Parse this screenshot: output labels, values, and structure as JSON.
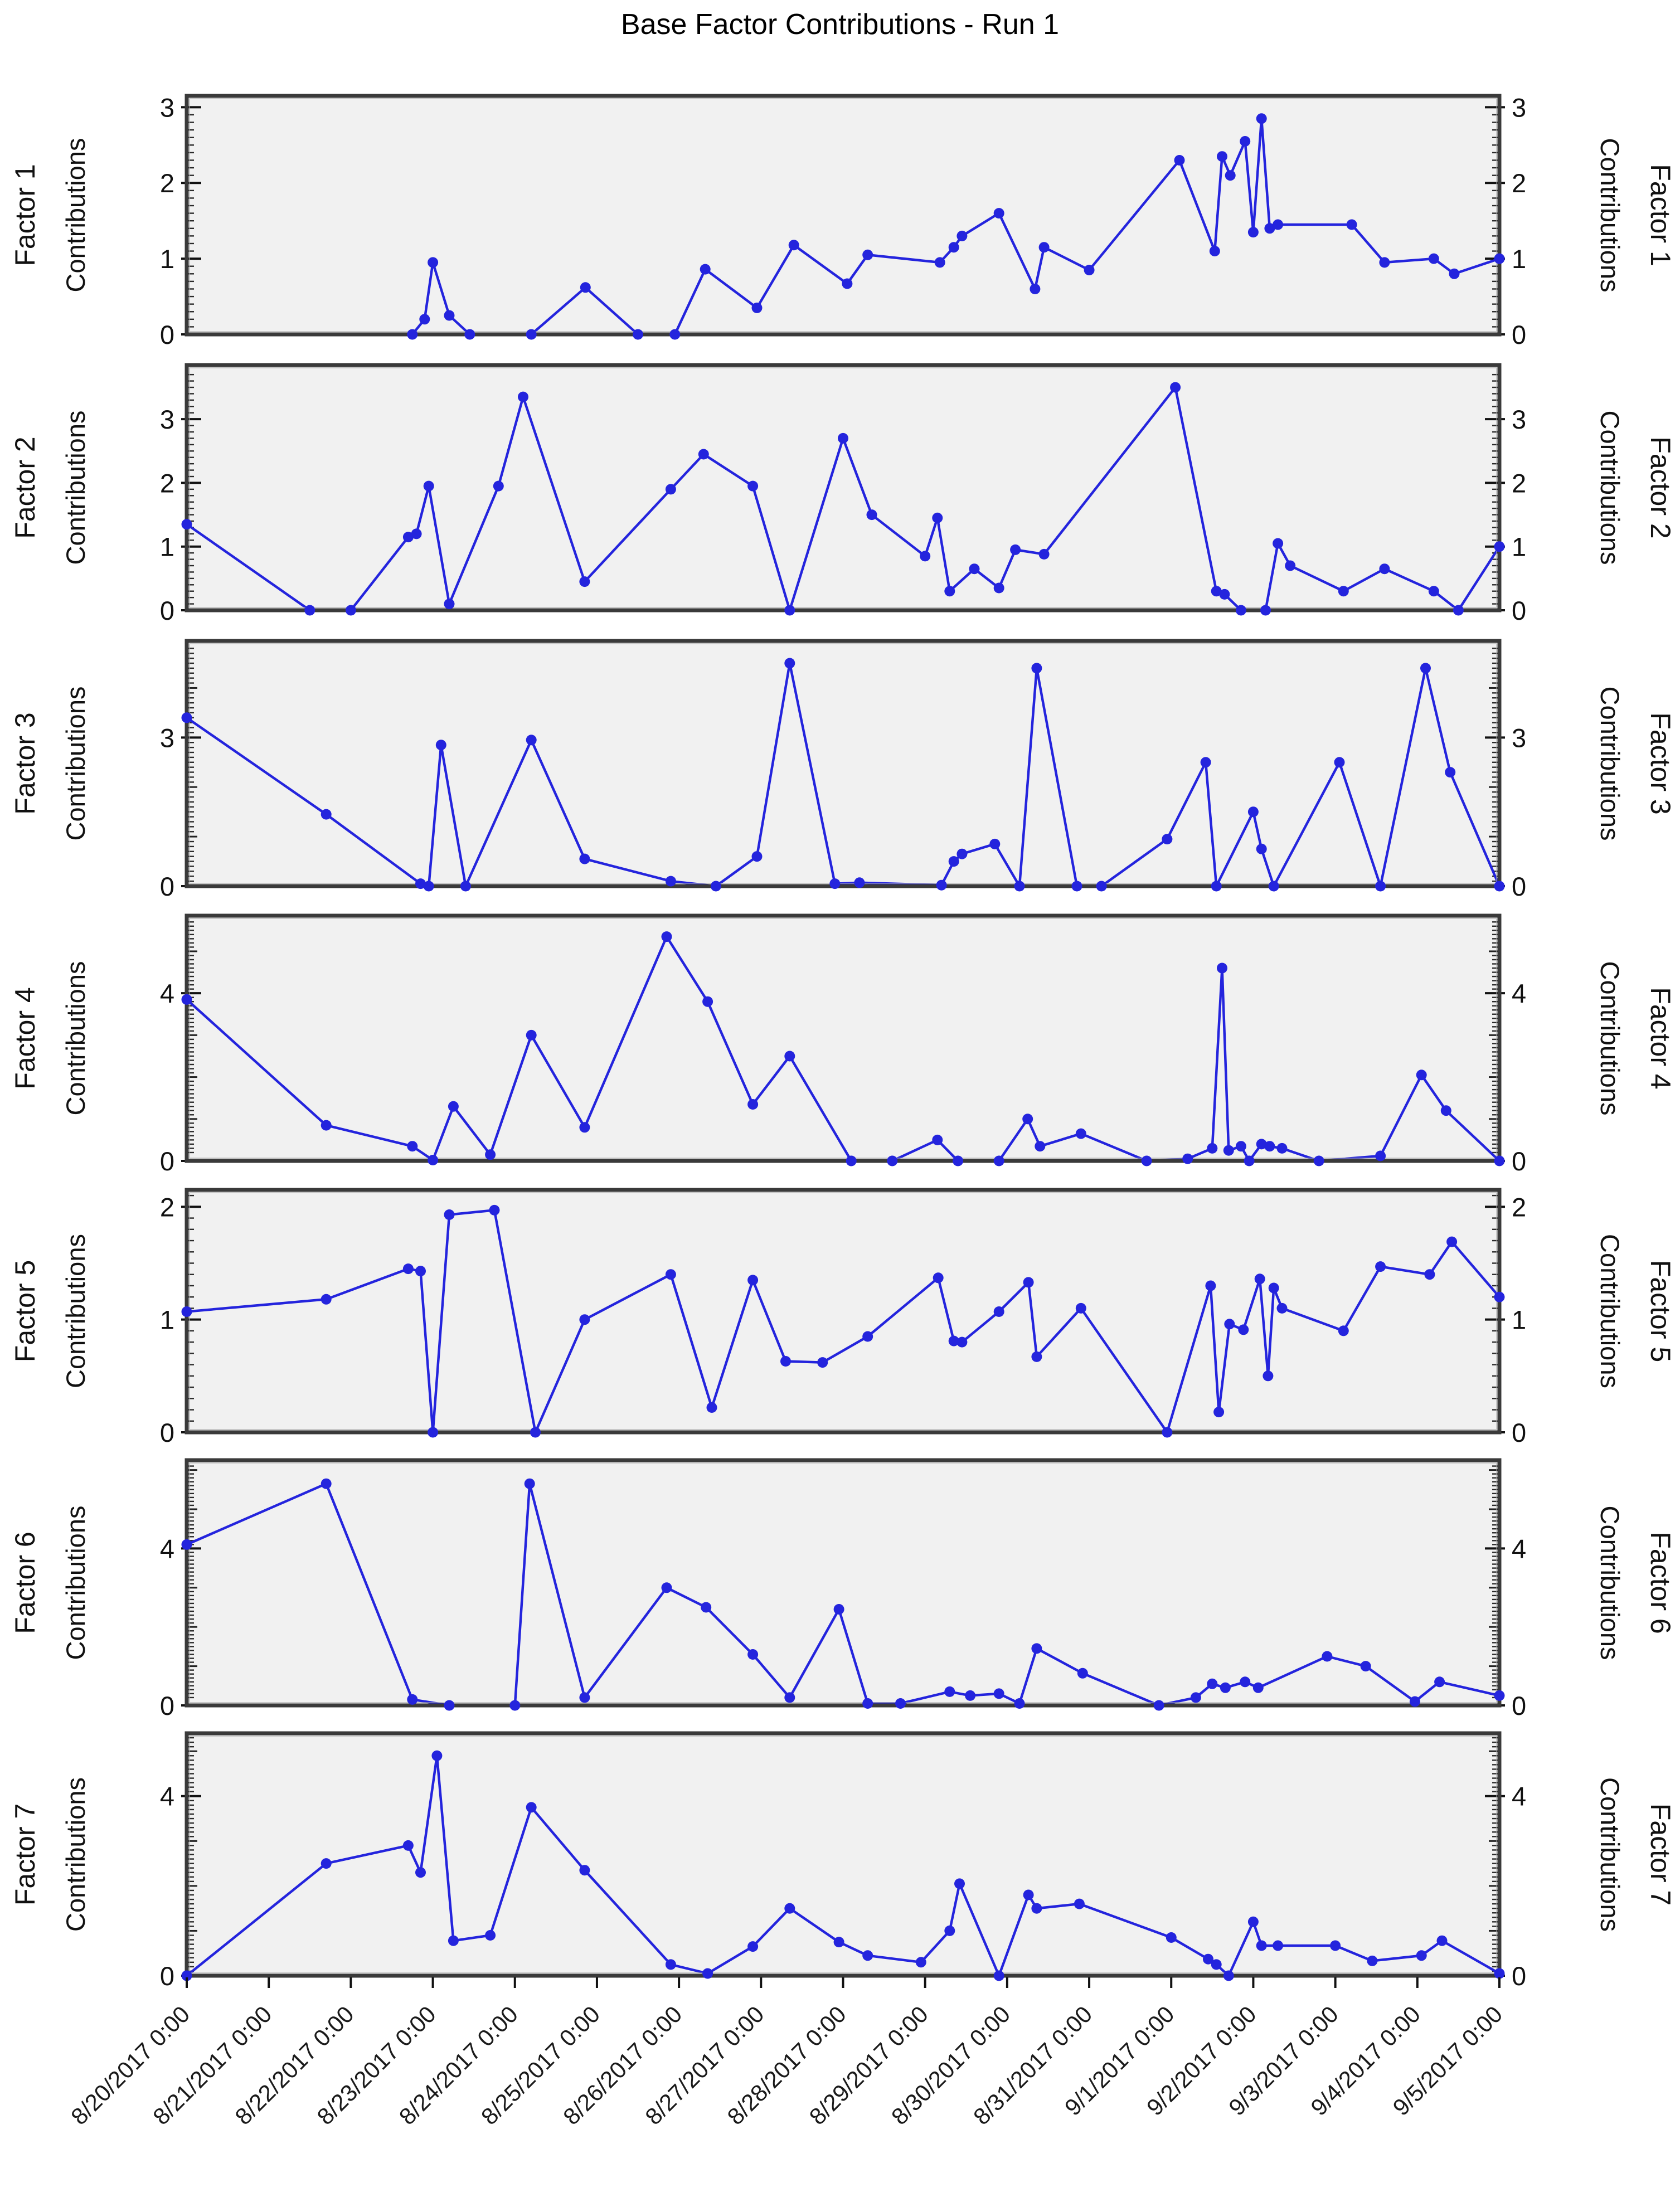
{
  "title": "Base Factor Contributions - Run 1",
  "chart_data": {
    "type": "line",
    "subplots_share_x": true,
    "y_axis_label": "Contributions",
    "line_color": "#2424dd",
    "marker_color": "#2424dd",
    "plot_bg": "#f1f1f1",
    "border_color": "#3a3a3a",
    "text_color": "#111111",
    "x_axis": {
      "start_day": 0,
      "end_day": 16,
      "tick_labels": [
        "8/20/2017 0:00",
        "8/21/2017 0:00",
        "8/22/2017 0:00",
        "8/23/2017 0:00",
        "8/24/2017 0:00",
        "8/25/2017 0:00",
        "8/26/2017 0:00",
        "8/27/2017 0:00",
        "8/28/2017 0:00",
        "8/29/2017 0:00",
        "8/30/2017 0:00",
        "8/31/2017 0:00",
        "9/1/2017 0:00",
        "9/2/2017 0:00",
        "9/3/2017 0:00",
        "9/4/2017 0:00",
        "9/5/2017 0:00"
      ],
      "label_rotation_deg": -45
    },
    "panels": [
      {
        "name": "Factor 1",
        "ylim": [
          0,
          3.15
        ],
        "yticks_labeled": [
          0,
          1,
          2,
          3
        ],
        "yticks_unlabeled": [],
        "points": [
          [
            2.75,
            0
          ],
          [
            2.9,
            0.2
          ],
          [
            3.0,
            0.95
          ],
          [
            3.2,
            0.25
          ],
          [
            3.45,
            0
          ],
          [
            4.2,
            0
          ],
          [
            4.86,
            0.62
          ],
          [
            5.5,
            0
          ],
          [
            5.95,
            0
          ],
          [
            6.32,
            0.86
          ],
          [
            6.95,
            0.35
          ],
          [
            7.4,
            1.18
          ],
          [
            8.05,
            0.67
          ],
          [
            8.3,
            1.05
          ],
          [
            9.18,
            0.95
          ],
          [
            9.35,
            1.15
          ],
          [
            9.45,
            1.3
          ],
          [
            9.9,
            1.6
          ],
          [
            10.34,
            0.6
          ],
          [
            10.45,
            1.15
          ],
          [
            11.0,
            0.85
          ],
          [
            12.1,
            2.3
          ],
          [
            12.53,
            1.1
          ],
          [
            12.62,
            2.35
          ],
          [
            12.72,
            2.1
          ],
          [
            12.9,
            2.55
          ],
          [
            13.0,
            1.35
          ],
          [
            13.1,
            2.85
          ],
          [
            13.2,
            1.4
          ],
          [
            13.3,
            1.45
          ],
          [
            14.2,
            1.45
          ],
          [
            14.6,
            0.95
          ],
          [
            15.2,
            1.0
          ],
          [
            15.45,
            0.8
          ],
          [
            16,
            1.0
          ]
        ]
      },
      {
        "name": "Factor 2",
        "ylim": [
          0,
          3.85
        ],
        "yticks_labeled": [
          0,
          1,
          2,
          3
        ],
        "yticks_unlabeled": [],
        "points": [
          [
            0,
            1.35
          ],
          [
            1.5,
            0
          ],
          [
            2.0,
            0
          ],
          [
            2.7,
            1.15
          ],
          [
            2.8,
            1.2
          ],
          [
            2.95,
            1.95
          ],
          [
            3.2,
            0.1
          ],
          [
            3.8,
            1.95
          ],
          [
            4.1,
            3.35
          ],
          [
            4.85,
            0.45
          ],
          [
            5.9,
            1.9
          ],
          [
            6.3,
            2.45
          ],
          [
            6.9,
            1.95
          ],
          [
            7.35,
            0
          ],
          [
            8.0,
            2.7
          ],
          [
            8.35,
            1.5
          ],
          [
            9.0,
            0.85
          ],
          [
            9.15,
            1.45
          ],
          [
            9.3,
            0.3
          ],
          [
            9.6,
            0.65
          ],
          [
            9.9,
            0.35
          ],
          [
            10.1,
            0.95
          ],
          [
            10.45,
            0.88
          ],
          [
            12.05,
            3.5
          ],
          [
            12.55,
            0.3
          ],
          [
            12.65,
            0.25
          ],
          [
            12.85,
            0
          ],
          [
            13.15,
            0
          ],
          [
            13.3,
            1.05
          ],
          [
            13.45,
            0.7
          ],
          [
            14.1,
            0.3
          ],
          [
            14.6,
            0.65
          ],
          [
            15.2,
            0.3
          ],
          [
            15.5,
            0
          ],
          [
            16,
            1.0
          ]
        ]
      },
      {
        "name": "Factor 3",
        "ylim": [
          0,
          4.95
        ],
        "yticks_labeled": [
          0,
          3
        ],
        "yticks_unlabeled": [
          1,
          2,
          4
        ],
        "points": [
          [
            0,
            3.4
          ],
          [
            1.7,
            1.45
          ],
          [
            2.85,
            0.05
          ],
          [
            2.95,
            0
          ],
          [
            3.1,
            2.85
          ],
          [
            3.4,
            0
          ],
          [
            4.2,
            2.95
          ],
          [
            4.85,
            0.55
          ],
          [
            5.9,
            0.1
          ],
          [
            6.45,
            0
          ],
          [
            6.95,
            0.6
          ],
          [
            7.35,
            4.5
          ],
          [
            7.9,
            0.05
          ],
          [
            8.2,
            0.07
          ],
          [
            9.2,
            0.02
          ],
          [
            9.35,
            0.5
          ],
          [
            9.45,
            0.65
          ],
          [
            9.85,
            0.85
          ],
          [
            10.15,
            0
          ],
          [
            10.36,
            4.4
          ],
          [
            10.85,
            0
          ],
          [
            11.15,
            0
          ],
          [
            11.95,
            0.95
          ],
          [
            12.42,
            2.5
          ],
          [
            12.55,
            0
          ],
          [
            13.0,
            1.5
          ],
          [
            13.1,
            0.75
          ],
          [
            13.25,
            0
          ],
          [
            14.05,
            2.5
          ],
          [
            14.55,
            0
          ],
          [
            15.1,
            4.4
          ],
          [
            15.4,
            2.3
          ],
          [
            16,
            0
          ]
        ]
      },
      {
        "name": "Factor 4",
        "ylim": [
          0,
          5.85
        ],
        "yticks_labeled": [
          0,
          4
        ],
        "yticks_unlabeled": [
          1,
          2,
          3,
          5
        ],
        "points": [
          [
            0,
            3.85
          ],
          [
            1.7,
            0.85
          ],
          [
            2.75,
            0.35
          ],
          [
            3.0,
            0.02
          ],
          [
            3.25,
            1.3
          ],
          [
            3.7,
            0.15
          ],
          [
            4.2,
            3.0
          ],
          [
            4.85,
            0.8
          ],
          [
            5.85,
            5.35
          ],
          [
            6.35,
            3.8
          ],
          [
            6.9,
            1.35
          ],
          [
            7.35,
            2.5
          ],
          [
            8.1,
            0
          ],
          [
            8.6,
            0
          ],
          [
            9.15,
            0.5
          ],
          [
            9.4,
            0
          ],
          [
            9.9,
            0
          ],
          [
            10.25,
            1.0
          ],
          [
            10.4,
            0.35
          ],
          [
            10.9,
            0.65
          ],
          [
            11.7,
            0
          ],
          [
            12.2,
            0.05
          ],
          [
            12.5,
            0.3
          ],
          [
            12.62,
            4.6
          ],
          [
            12.7,
            0.25
          ],
          [
            12.85,
            0.35
          ],
          [
            12.95,
            0
          ],
          [
            13.1,
            0.4
          ],
          [
            13.2,
            0.35
          ],
          [
            13.35,
            0.3
          ],
          [
            13.8,
            0
          ],
          [
            14.55,
            0.12
          ],
          [
            15.05,
            2.05
          ],
          [
            15.35,
            1.2
          ],
          [
            16,
            0
          ]
        ]
      },
      {
        "name": "Factor 5",
        "ylim": [
          0,
          2.15
        ],
        "yticks_labeled": [
          0,
          1,
          2
        ],
        "yticks_unlabeled": [],
        "points": [
          [
            0,
            1.07
          ],
          [
            1.7,
            1.18
          ],
          [
            2.7,
            1.45
          ],
          [
            2.85,
            1.43
          ],
          [
            3.0,
            0
          ],
          [
            3.2,
            1.93
          ],
          [
            3.75,
            1.97
          ],
          [
            4.25,
            0
          ],
          [
            4.85,
            1.0
          ],
          [
            5.9,
            1.4
          ],
          [
            6.4,
            0.22
          ],
          [
            6.9,
            1.35
          ],
          [
            7.3,
            0.63
          ],
          [
            7.75,
            0.62
          ],
          [
            8.3,
            0.85
          ],
          [
            9.16,
            1.37
          ],
          [
            9.35,
            0.81
          ],
          [
            9.45,
            0.8
          ],
          [
            9.9,
            1.07
          ],
          [
            10.26,
            1.33
          ],
          [
            10.36,
            0.67
          ],
          [
            10.9,
            1.1
          ],
          [
            11.95,
            0
          ],
          [
            12.48,
            1.3
          ],
          [
            12.58,
            0.18
          ],
          [
            12.71,
            0.96
          ],
          [
            12.88,
            0.91
          ],
          [
            13.08,
            1.36
          ],
          [
            13.18,
            0.5
          ],
          [
            13.25,
            1.28
          ],
          [
            13.35,
            1.1
          ],
          [
            14.1,
            0.9
          ],
          [
            14.55,
            1.47
          ],
          [
            15.15,
            1.4
          ],
          [
            15.42,
            1.69
          ],
          [
            16,
            1.2
          ]
        ]
      },
      {
        "name": "Factor 6",
        "ylim": [
          0,
          6.25
        ],
        "yticks_labeled": [
          0,
          4
        ],
        "yticks_unlabeled": [
          1,
          2,
          3,
          5,
          6
        ],
        "points": [
          [
            0,
            4.1
          ],
          [
            1.7,
            5.65
          ],
          [
            2.75,
            0.15
          ],
          [
            3.2,
            0
          ],
          [
            4.0,
            0
          ],
          [
            4.18,
            5.65
          ],
          [
            4.85,
            0.2
          ],
          [
            5.85,
            3.0
          ],
          [
            6.33,
            2.5
          ],
          [
            6.9,
            1.3
          ],
          [
            7.35,
            0.2
          ],
          [
            7.95,
            2.45
          ],
          [
            8.3,
            0.05
          ],
          [
            8.7,
            0.05
          ],
          [
            9.3,
            0.35
          ],
          [
            9.55,
            0.25
          ],
          [
            9.9,
            0.3
          ],
          [
            10.15,
            0.05
          ],
          [
            10.36,
            1.45
          ],
          [
            10.92,
            0.82
          ],
          [
            11.85,
            0
          ],
          [
            12.3,
            0.2
          ],
          [
            12.5,
            0.55
          ],
          [
            12.66,
            0.45
          ],
          [
            12.9,
            0.6
          ],
          [
            13.06,
            0.45
          ],
          [
            13.9,
            1.25
          ],
          [
            14.37,
            1.0
          ],
          [
            14.97,
            0.1
          ],
          [
            15.27,
            0.6
          ],
          [
            16,
            0.25
          ]
        ]
      },
      {
        "name": "Factor 7",
        "ylim": [
          0,
          5.4
        ],
        "yticks_labeled": [
          0,
          4
        ],
        "yticks_unlabeled": [
          1,
          2,
          3,
          5
        ],
        "points": [
          [
            0,
            0
          ],
          [
            1.7,
            2.5
          ],
          [
            2.7,
            2.9
          ],
          [
            2.85,
            2.3
          ],
          [
            3.05,
            4.9
          ],
          [
            3.25,
            0.78
          ],
          [
            3.7,
            0.9
          ],
          [
            4.2,
            3.75
          ],
          [
            4.85,
            2.35
          ],
          [
            5.9,
            0.25
          ],
          [
            6.35,
            0.05
          ],
          [
            6.9,
            0.65
          ],
          [
            7.35,
            1.5
          ],
          [
            7.95,
            0.75
          ],
          [
            8.3,
            0.45
          ],
          [
            8.95,
            0.3
          ],
          [
            9.3,
            1.0
          ],
          [
            9.42,
            2.05
          ],
          [
            9.9,
            0
          ],
          [
            10.26,
            1.8
          ],
          [
            10.36,
            1.5
          ],
          [
            10.88,
            1.6
          ],
          [
            12.0,
            0.85
          ],
          [
            12.45,
            0.37
          ],
          [
            12.55,
            0.25
          ],
          [
            12.7,
            0
          ],
          [
            13.0,
            1.2
          ],
          [
            13.1,
            0.67
          ],
          [
            13.3,
            0.67
          ],
          [
            14.0,
            0.67
          ],
          [
            14.45,
            0.33
          ],
          [
            15.05,
            0.45
          ],
          [
            15.3,
            0.78
          ],
          [
            16,
            0.05
          ]
        ]
      }
    ]
  }
}
